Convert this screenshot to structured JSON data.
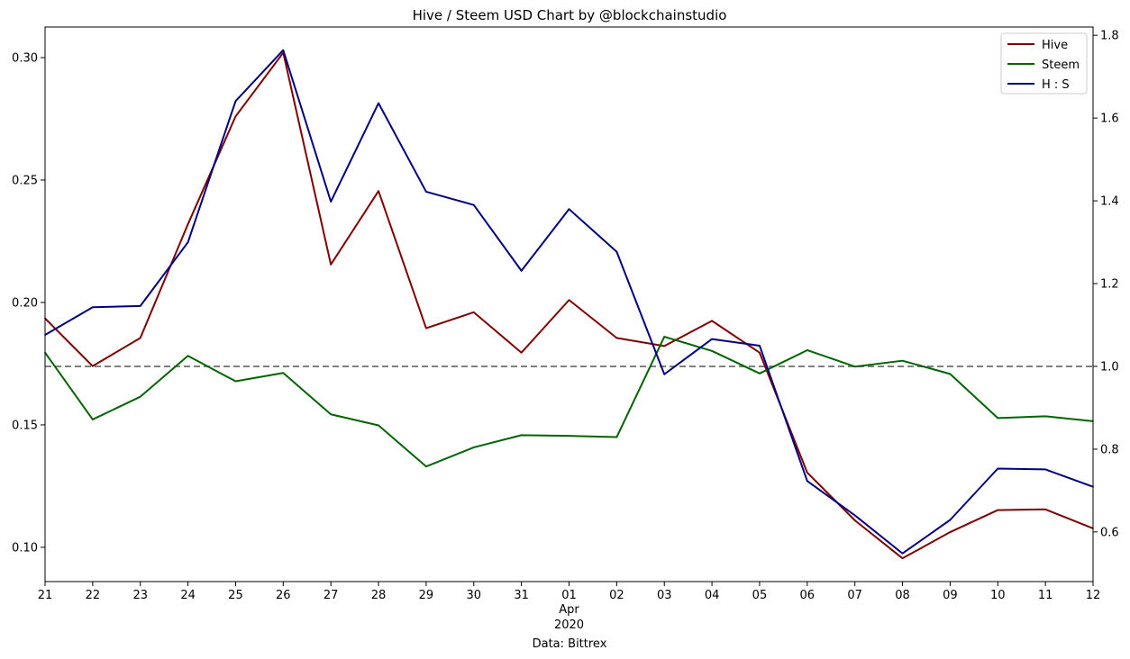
{
  "chart_data": {
    "type": "line",
    "title": "Hive / Steem USD Chart by @blockchainstudio",
    "xlabel": "Data: Bittrex",
    "x_tick_labels": [
      "21",
      "22",
      "23",
      "24",
      "25",
      "26",
      "27",
      "28",
      "29",
      "30",
      "31",
      "01",
      "02",
      "03",
      "04",
      "05",
      "06",
      "07",
      "08",
      "09",
      "10",
      "11",
      "12"
    ],
    "x_secondary_labels": {
      "index": 11,
      "month": "Apr",
      "year": "2020"
    },
    "y_left": {
      "lim": [
        0.086,
        0.3125
      ],
      "ticks": [
        0.1,
        0.15,
        0.2,
        0.25,
        0.3
      ],
      "tick_labels": [
        "0.10",
        "0.15",
        "0.20",
        "0.25",
        "0.30"
      ]
    },
    "y_right": {
      "lim": [
        0.48,
        1.82
      ],
      "ticks": [
        0.6,
        0.8,
        1.0,
        1.2,
        1.4,
        1.6,
        1.8
      ],
      "tick_labels": [
        "0.6",
        "0.8",
        "1.0",
        "1.2",
        "1.4",
        "1.6",
        "1.8"
      ]
    },
    "reference_line": {
      "axis": "right",
      "value": 1.0,
      "style": "dashed",
      "color": "#808080"
    },
    "legend_position": "top-right",
    "series": [
      {
        "name": "Hive",
        "axis": "left",
        "color": "#800000",
        "values": [
          0.1935,
          0.174,
          0.1855,
          0.232,
          0.276,
          0.302,
          0.2155,
          0.2455,
          0.1895,
          0.196,
          0.1795,
          0.201,
          0.1855,
          0.1822,
          0.1925,
          0.1795,
          0.1305,
          0.111,
          0.0955,
          0.1062,
          0.1152,
          0.1155,
          0.1077
        ]
      },
      {
        "name": "Steem",
        "axis": "left",
        "color": "#006400",
        "values": [
          0.1795,
          0.1522,
          0.1615,
          0.1782,
          0.1678,
          0.1712,
          0.1543,
          0.1498,
          0.133,
          0.1408,
          0.1458,
          0.1455,
          0.145,
          0.186,
          0.1802,
          0.171,
          0.1805,
          0.1738,
          0.1762,
          0.1708,
          0.1528,
          0.1535,
          0.1515
        ]
      },
      {
        "name": "H : S",
        "axis": "right",
        "color": "#000080",
        "values": [
          1.076,
          1.143,
          1.146,
          1.3,
          1.641,
          1.764,
          1.398,
          1.636,
          1.422,
          1.39,
          1.231,
          1.38,
          1.277,
          0.981,
          1.066,
          1.05,
          0.723,
          0.64,
          0.548,
          0.629,
          0.753,
          0.751,
          0.709
        ]
      }
    ]
  }
}
